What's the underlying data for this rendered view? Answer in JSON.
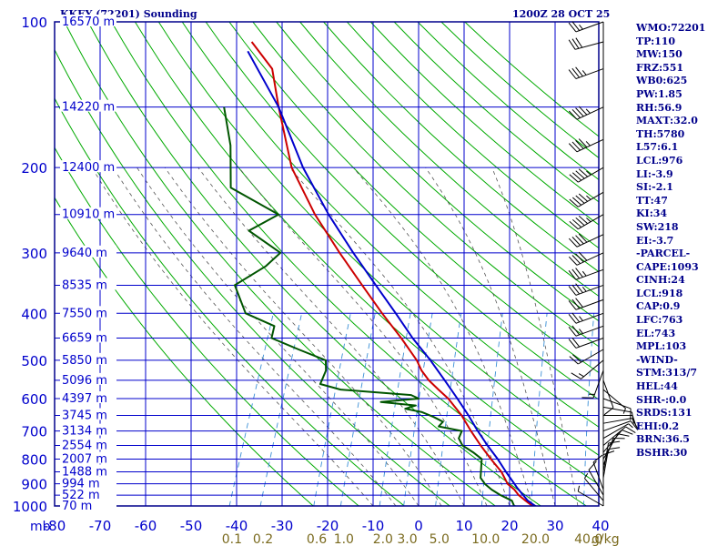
{
  "header": {
    "station": "KKEY (72201) Sounding",
    "time": "1200Z 28 OCT 25"
  },
  "stats": [
    "WMO:72201",
    "TP:110",
    "MW:150",
    "FRZ:551",
    "WB0:625",
    "PW:1.85",
    "RH:56.9",
    "MAXT:32.0",
    "TH:5780",
    "L57:6.1",
    "LCL:976",
    "LI:-3.9",
    "SI:-2.1",
    "TT:47",
    "KI:34",
    "SW:218",
    "EI:-3.7",
    "-PARCEL-",
    "CAPE:1093",
    "CINH:24",
    "LCL:918",
    "CAP:0.9",
    "LFC:763",
    "EL:743",
    "MPL:103",
    "-WIND-",
    "STM:313/7",
    "HEL:44",
    "SHR-:0.0",
    "SRDS:131",
    "EHI:0.2",
    "BRN:36.5",
    "BSHR:30"
  ],
  "colors": {
    "frame": "#00008b",
    "isotherm": "#0000cc",
    "dry_adiabat": "#00aa00",
    "moist_adiabat": "#555555",
    "mixing_ratio": "#3a8fd6",
    "temperature": "#cc0000",
    "dewpoint": "#005500",
    "parcel": "#0000cc",
    "wind_barb": "#000000",
    "mixing_ratio_label": "#7a6a1e",
    "axis_text": "#0000cc"
  },
  "chart_data": {
    "type": "line",
    "title": "KKEY (72201) Sounding",
    "xlabel": "",
    "ylabel": "mb",
    "xlim": [
      -80,
      40
    ],
    "ylim": [
      1000,
      100
    ],
    "y_scale": "log",
    "pressure_ticks": [
      100,
      200,
      300,
      400,
      500,
      600,
      700,
      800,
      900,
      1000
    ],
    "temp_ticks": [
      -80,
      -70,
      -60,
      -50,
      -40,
      -30,
      -20,
      -10,
      0,
      10,
      20,
      30,
      40
    ],
    "temp_tick_labels": [
      "-80",
      "-70",
      "-60",
      "-50",
      "-40",
      "-30",
      "-20",
      "-10",
      "0",
      "10",
      "20",
      "30",
      "40"
    ],
    "mixing_ratio_labels": [
      "0.1",
      "0.2",
      "0.6",
      "1.0",
      "2.0",
      "3.0",
      "5.0",
      "10.0",
      "20.0",
      "40.0"
    ],
    "mixing_ratio_unit": "g/kg",
    "height_labels": [
      {
        "p": 100,
        "label": "16570 m"
      },
      {
        "p": 150,
        "label": "14220 m"
      },
      {
        "p": 200,
        "label": "12400 m"
      },
      {
        "p": 250,
        "label": "10910 m"
      },
      {
        "p": 300,
        "label": "9640 m"
      },
      {
        "p": 350,
        "label": "8535 m"
      },
      {
        "p": 400,
        "label": "7550 m"
      },
      {
        "p": 450,
        "label": "6659 m"
      },
      {
        "p": 500,
        "label": "5850 m"
      },
      {
        "p": 550,
        "label": "5096 m"
      },
      {
        "p": 600,
        "label": "4397 m"
      },
      {
        "p": 650,
        "label": "3745 m"
      },
      {
        "p": 700,
        "label": "3134 m"
      },
      {
        "p": 750,
        "label": "2554 m"
      },
      {
        "p": 800,
        "label": "2007 m"
      },
      {
        "p": 850,
        "label": "1488 m"
      },
      {
        "p": 900,
        "label": "994 m"
      },
      {
        "p": 950,
        "label": "522 m"
      },
      {
        "p": 1000,
        "label": "70 m"
      }
    ],
    "series": [
      {
        "key": "temperature",
        "points": [
          [
            1010,
            26.5
          ],
          [
            1000,
            25
          ],
          [
            975,
            23
          ],
          [
            950,
            21
          ],
          [
            925,
            19.5
          ],
          [
            900,
            17.5
          ],
          [
            850,
            15
          ],
          [
            800,
            11.5
          ],
          [
            750,
            8
          ],
          [
            700,
            4.5
          ],
          [
            650,
            1
          ],
          [
            600,
            -3.5
          ],
          [
            575,
            -6.5
          ],
          [
            550,
            -9.5
          ],
          [
            525,
            -12
          ],
          [
            500,
            -14
          ],
          [
            450,
            -19.5
          ],
          [
            400,
            -26
          ],
          [
            350,
            -33
          ],
          [
            300,
            -41
          ],
          [
            250,
            -50
          ],
          [
            200,
            -59.5
          ],
          [
            150,
            -68
          ],
          [
            125,
            -73
          ],
          [
            110,
            -80
          ]
        ]
      },
      {
        "key": "dewpoint",
        "points": [
          [
            1010,
            23
          ],
          [
            1000,
            21
          ],
          [
            975,
            20
          ],
          [
            950,
            17
          ],
          [
            925,
            14.5
          ],
          [
            900,
            12.5
          ],
          [
            875,
            11
          ],
          [
            850,
            10.5
          ],
          [
            825,
            10
          ],
          [
            800,
            9.5
          ],
          [
            775,
            7
          ],
          [
            750,
            4
          ],
          [
            725,
            2.5
          ],
          [
            700,
            2.5
          ],
          [
            685,
            -3
          ],
          [
            670,
            -2.5
          ],
          [
            655,
            -5
          ],
          [
            640,
            -8
          ],
          [
            630,
            -12
          ],
          [
            620,
            -10
          ],
          [
            610,
            -18
          ],
          [
            600,
            -10
          ],
          [
            590,
            -12
          ],
          [
            575,
            -28
          ],
          [
            560,
            -33
          ],
          [
            550,
            -33
          ],
          [
            525,
            -33
          ],
          [
            500,
            -34
          ],
          [
            475,
            -41
          ],
          [
            450,
            -48
          ],
          [
            425,
            -48.5
          ],
          [
            400,
            -56
          ],
          [
            350,
            -61
          ],
          [
            320,
            -56
          ],
          [
            300,
            -54
          ],
          [
            270,
            -63
          ],
          [
            250,
            -58
          ],
          [
            220,
            -71
          ],
          [
            180,
            -75
          ],
          [
            150,
            -80
          ]
        ]
      },
      {
        "key": "parcel",
        "points": [
          [
            1010,
            26.5
          ],
          [
            975,
            23.5
          ],
          [
            950,
            22
          ],
          [
            918,
            20
          ],
          [
            900,
            19
          ],
          [
            850,
            16
          ],
          [
            800,
            13
          ],
          [
            750,
            9.5
          ],
          [
            700,
            6
          ],
          [
            650,
            2.5
          ],
          [
            600,
            -1.5
          ],
          [
            550,
            -6
          ],
          [
            500,
            -11
          ],
          [
            450,
            -17
          ],
          [
            400,
            -23
          ],
          [
            350,
            -30
          ],
          [
            300,
            -38
          ],
          [
            250,
            -47
          ],
          [
            200,
            -57
          ],
          [
            150,
            -68
          ],
          [
            115,
            -80
          ]
        ]
      }
    ],
    "winds": [
      {
        "p": 1000,
        "dir": 300,
        "spd": 5
      },
      {
        "p": 975,
        "dir": 320,
        "spd": 5
      },
      {
        "p": 950,
        "dir": 330,
        "spd": 10
      },
      {
        "p": 925,
        "dir": 340,
        "spd": 10
      },
      {
        "p": 900,
        "dir": 0,
        "spd": 10
      },
      {
        "p": 875,
        "dir": 10,
        "spd": 10
      },
      {
        "p": 850,
        "dir": 10,
        "spd": 10
      },
      {
        "p": 825,
        "dir": 20,
        "spd": 10
      },
      {
        "p": 800,
        "dir": 30,
        "spd": 10
      },
      {
        "p": 775,
        "dir": 40,
        "spd": 10
      },
      {
        "p": 750,
        "dir": 50,
        "spd": 10
      },
      {
        "p": 725,
        "dir": 60,
        "spd": 5
      },
      {
        "p": 700,
        "dir": 70,
        "spd": 10
      },
      {
        "p": 675,
        "dir": 80,
        "spd": 10
      },
      {
        "p": 650,
        "dir": 90,
        "spd": 10
      },
      {
        "p": 625,
        "dir": 100,
        "spd": 10
      },
      {
        "p": 600,
        "dir": 110,
        "spd": 10
      },
      {
        "p": 575,
        "dir": 130,
        "spd": 5
      },
      {
        "p": 550,
        "dir": 160,
        "spd": 10
      },
      {
        "p": 525,
        "dir": 200,
        "spd": 15
      },
      {
        "p": 500,
        "dir": 230,
        "spd": 15
      },
      {
        "p": 475,
        "dir": 240,
        "spd": 20
      },
      {
        "p": 450,
        "dir": 250,
        "spd": 20
      },
      {
        "p": 425,
        "dir": 250,
        "spd": 25
      },
      {
        "p": 400,
        "dir": 250,
        "spd": 25
      },
      {
        "p": 375,
        "dir": 250,
        "spd": 30
      },
      {
        "p": 350,
        "dir": 250,
        "spd": 35
      },
      {
        "p": 325,
        "dir": 250,
        "spd": 35
      },
      {
        "p": 300,
        "dir": 245,
        "spd": 40
      },
      {
        "p": 275,
        "dir": 245,
        "spd": 40
      },
      {
        "p": 250,
        "dir": 240,
        "spd": 45
      },
      {
        "p": 225,
        "dir": 240,
        "spd": 45
      },
      {
        "p": 200,
        "dir": 240,
        "spd": 45
      },
      {
        "p": 175,
        "dir": 245,
        "spd": 45
      },
      {
        "p": 150,
        "dir": 245,
        "spd": 45
      },
      {
        "p": 125,
        "dir": 250,
        "spd": 35
      },
      {
        "p": 110,
        "dir": 255,
        "spd": 30
      },
      {
        "p": 100,
        "dir": 250,
        "spd": 25
      }
    ]
  }
}
